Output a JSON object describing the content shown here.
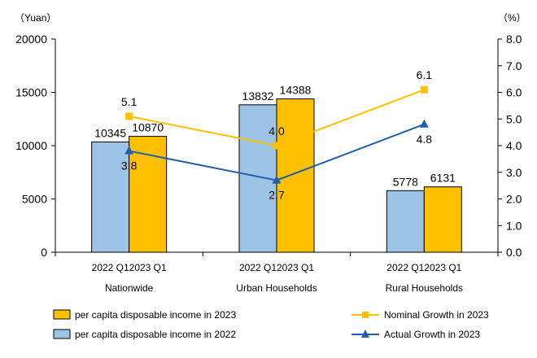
{
  "chart_data": {
    "type": "bar",
    "left_unit": "（Yuan）",
    "right_unit": "（%）",
    "groups": [
      "Nationwide",
      "Urban Households",
      "Rural Households"
    ],
    "bar_labels": [
      "2022 Q1",
      "2023 Q1"
    ],
    "y_left_ticks": [
      "0",
      "5000",
      "10000",
      "15000",
      "20000"
    ],
    "y_left_lim": [
      0,
      20000
    ],
    "y_right_ticks": [
      "0.0",
      "1.0",
      "2.0",
      "3.0",
      "4.0",
      "5.0",
      "6.0",
      "7.0",
      "8.0"
    ],
    "y_right_lim": [
      0,
      8
    ],
    "series": [
      {
        "name": "per capita disposable income in 2022",
        "kind": "bar",
        "axis": "left",
        "color": "#9DC3E6",
        "values": [
          10345,
          13832,
          5778
        ]
      },
      {
        "name": "per capita disposable income in 2023",
        "kind": "bar",
        "axis": "left",
        "color": "#FFC000",
        "values": [
          10870,
          14388,
          6131
        ]
      },
      {
        "name": "Nominal Growth in 2023",
        "kind": "line",
        "axis": "right",
        "marker": "square",
        "color": "#FFC000",
        "values": [
          5.1,
          4.0,
          6.1
        ]
      },
      {
        "name": "Actual Growth in 2023",
        "kind": "line",
        "axis": "right",
        "marker": "triangle",
        "color": "#1F5FAD",
        "values": [
          3.8,
          2.7,
          4.8
        ]
      }
    ],
    "legend": {
      "position": "bottom",
      "order": [
        "per capita disposable income in 2023",
        "per capita disposable income in 2022",
        "Nominal Growth in 2023",
        "Actual Growth in 2023"
      ]
    },
    "grid": false
  }
}
